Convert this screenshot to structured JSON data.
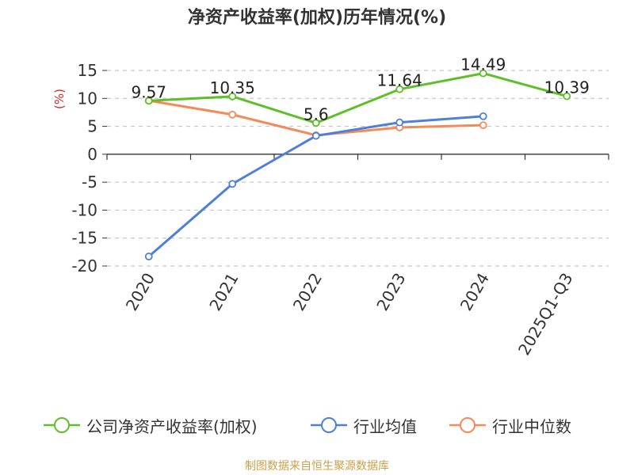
{
  "title": "净资产收益率(加权)历年情况(%)",
  "source": "制图数据来自恒生聚源数据库",
  "chart_data": {
    "type": "line",
    "title": "净资产收益率(加权)历年情况(%)",
    "ylabel": "(%)",
    "ylabel_color": "#d62728",
    "categories": [
      "2020",
      "2021",
      "2022",
      "2023",
      "2024",
      "2025Q1-Q3"
    ],
    "y_ticks": [
      "15",
      "10",
      "5",
      "0",
      "-5",
      "-10",
      "-15",
      "-20"
    ],
    "ylim": [
      -20,
      15
    ],
    "grid": "horizontal dashed",
    "legend_position": "bottom",
    "series": [
      {
        "name": "公司净资产收益率(加权)",
        "color": "#5fbf2a",
        "values": [
          9.57,
          10.35,
          5.6,
          11.64,
          14.49,
          10.39
        ],
        "labels": [
          "9.57",
          "10.35",
          "5.6",
          "11.64",
          "14.49",
          "10.39"
        ]
      },
      {
        "name": "行业均值",
        "color": "#4e7fd9",
        "values": [
          -18.3,
          -5.3,
          3.3,
          5.7,
          6.8,
          null
        ]
      },
      {
        "name": "行业中位数",
        "color": "#f4895a",
        "values": [
          9.6,
          7.1,
          3.4,
          4.8,
          5.2,
          null
        ]
      }
    ]
  }
}
